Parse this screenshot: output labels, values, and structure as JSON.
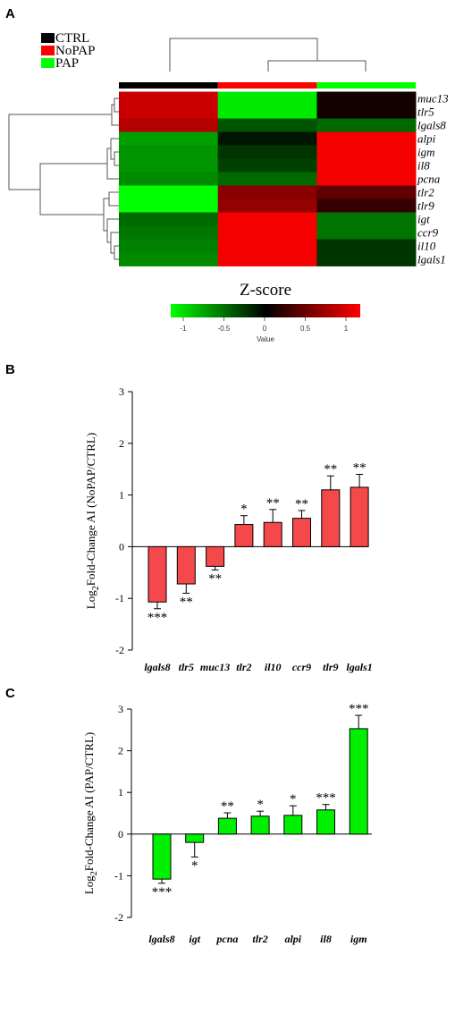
{
  "panel_labels": {
    "a": "A",
    "b": "B",
    "c": "C"
  },
  "heatmap": {
    "legend": [
      {
        "label": "CTRL",
        "color": "#000000"
      },
      {
        "label": "NoPAP",
        "color": "#ff0000"
      },
      {
        "label": "PAP",
        "color": "#00ff00"
      }
    ],
    "columns": [
      "CTRL",
      "NoPAP",
      "PAP"
    ],
    "colorbar_title": "Z-score",
    "colorbar_ticks": [
      "-1",
      "-0.5",
      "0",
      "0.5",
      "1"
    ],
    "colorbar_ticks_values": [
      -1,
      -0.5,
      0,
      0.5,
      1
    ],
    "colorbar_label": "Value",
    "colorbar_colors": {
      "low": "#00ff00",
      "mid": "#000000",
      "high": "#ff0000"
    }
  },
  "chart_data": [
    {
      "type": "heatmap",
      "rows": [
        "muc13",
        "tlr5",
        "lgals8",
        "alpi",
        "igm",
        "il8",
        "pcna",
        "tlr2",
        "tlr9",
        "igt",
        "ccr9",
        "il10",
        "lgals1"
      ],
      "columns": [
        "CTRL",
        "NoPAP",
        "PAP"
      ],
      "values": [
        [
          0.95,
          -1.1,
          0.1
        ],
        [
          0.95,
          -1.1,
          0.1
        ],
        [
          0.85,
          -0.4,
          -0.5
        ],
        [
          -0.75,
          -0.1,
          1.15
        ],
        [
          -0.7,
          -0.25,
          1.15
        ],
        [
          -0.7,
          -0.3,
          1.15
        ],
        [
          -0.65,
          -0.5,
          1.15
        ],
        [
          -1.2,
          0.65,
          0.45
        ],
        [
          -1.2,
          0.7,
          0.25
        ],
        [
          -0.5,
          1.15,
          -0.55
        ],
        [
          -0.55,
          1.15,
          -0.55
        ],
        [
          -0.6,
          1.15,
          -0.25
        ],
        [
          -0.65,
          1.15,
          -0.25
        ]
      ],
      "color_range": [
        -1.2,
        1.2
      ]
    },
    {
      "type": "bar",
      "categories": [
        "lgals8",
        "tlr5",
        "muc13",
        "tlr2",
        "il10",
        "ccr9",
        "tlr9",
        "lgals1"
      ],
      "values": [
        -1.07,
        -0.72,
        -0.38,
        0.43,
        0.47,
        0.55,
        1.1,
        1.15
      ],
      "errors": [
        0.13,
        0.18,
        0.07,
        0.17,
        0.25,
        0.15,
        0.27,
        0.25
      ],
      "significance": [
        "***",
        "**",
        "**",
        "*",
        "**",
        "**",
        "**",
        "**"
      ],
      "ylabel": "Log2Fold-Change AI (NoPAP/CTRL)",
      "ylim": [
        -2,
        3
      ],
      "yticks": [
        -2,
        -1,
        0,
        1,
        2,
        3
      ],
      "color": "#f5484a"
    },
    {
      "type": "bar",
      "categories": [
        "lgals8",
        "igt",
        "pcna",
        "tlr2",
        "alpi",
        "il8",
        "igm"
      ],
      "values": [
        -1.08,
        -0.2,
        0.38,
        0.43,
        0.45,
        0.58,
        2.53
      ],
      "errors": [
        0.1,
        0.35,
        0.13,
        0.12,
        0.23,
        0.13,
        0.32
      ],
      "significance": [
        "***",
        "*",
        "**",
        "*",
        "*",
        "***",
        "***"
      ],
      "ylabel": "Log2Fold-Change AI (PAP/CTRL)",
      "ylim": [
        -2,
        3
      ],
      "yticks": [
        -2,
        -1,
        0,
        1,
        2,
        3
      ],
      "color": "#00f000"
    }
  ]
}
